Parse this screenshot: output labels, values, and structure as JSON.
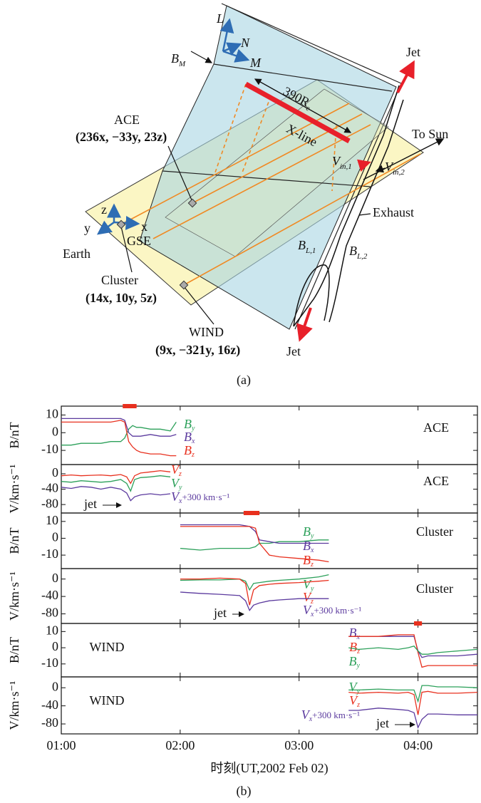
{
  "figure_a": {
    "L": "L",
    "N": "N",
    "M": "M",
    "B_M": {
      "base": "B",
      "sub": "M"
    },
    "jet_top": "Jet",
    "length": {
      "base": "390R",
      "sub": "e"
    },
    "x_line": "X-line",
    "ace": {
      "name": "ACE",
      "position": "(236x, −33y, 23z)"
    },
    "to_sun": "To Sun",
    "v_in1": {
      "base": "V",
      "sub": "in,1"
    },
    "v_in2": {
      "base": "V",
      "sub": "in,2"
    },
    "exhaust": "Exhaust",
    "gse_axes": {
      "z": "z",
      "y": "y",
      "x": "x"
    },
    "earth": "Earth",
    "gse": "GSE",
    "cluster": {
      "name": "Cluster",
      "position": "(14x, 10y, 5z)"
    },
    "b_l1": {
      "base": "B",
      "sub": "L,1"
    },
    "b_l2": {
      "base": "B",
      "sub": "L,2"
    },
    "wind": {
      "name": "WIND",
      "position": "(9x, −321y, 16z)"
    },
    "jet_bottom": "Jet",
    "caption": "(a)"
  },
  "chart_data": [
    {
      "type": "line",
      "station": "ACE",
      "y_label": "B/nT",
      "xlim": [
        "01:00",
        "04:30"
      ],
      "ylim": [
        -18,
        15
      ],
      "yticks": [
        -10,
        0,
        10
      ],
      "highlight": {
        "x": [
          "01:31",
          "01:38"
        ],
        "color": "#e8301e"
      },
      "x": [
        "01:00",
        "01:05",
        "01:10",
        "01:15",
        "01:20",
        "01:25",
        "01:30",
        "01:32",
        "01:34",
        "01:36",
        "01:38",
        "01:40",
        "01:45",
        "01:50",
        "01:55",
        "01:58"
      ],
      "series": [
        {
          "name": {
            "base": "B",
            "sub": "y"
          },
          "color": "#2ca05a",
          "values": [
            -7,
            -7,
            -6,
            -6,
            -6,
            -5,
            -5,
            -3,
            2,
            4,
            3,
            3,
            2,
            2,
            1,
            6
          ]
        },
        {
          "name": {
            "base": "B",
            "sub": "x"
          },
          "color": "#5b3a9e",
          "values": [
            8,
            8,
            8,
            8,
            8,
            8,
            8,
            7,
            0,
            -2,
            -2,
            -2,
            -1,
            -2,
            -2,
            -1
          ]
        },
        {
          "name": {
            "base": "B",
            "sub": "z"
          },
          "color": "#e8301e",
          "values": [
            6,
            6,
            6,
            6,
            6,
            6,
            7,
            6,
            -5,
            -8,
            -10,
            -11,
            -12,
            -12,
            -13,
            -13
          ]
        }
      ]
    },
    {
      "type": "line",
      "station": "ACE",
      "y_label": "V/km·s⁻¹",
      "xlim": [
        "01:00",
        "04:30"
      ],
      "ylim": [
        -102,
        24
      ],
      "yticks": [
        -80,
        -40,
        0
      ],
      "annotation": "jet",
      "x": [
        "01:00",
        "01:05",
        "01:10",
        "01:15",
        "01:20",
        "01:25",
        "01:30",
        "01:33",
        "01:35",
        "01:37",
        "01:40",
        "01:45",
        "01:50",
        "01:55"
      ],
      "series": [
        {
          "name": {
            "base": "V",
            "sub": "z"
          },
          "color": "#e8301e",
          "values": [
            -5,
            -3,
            -5,
            -4,
            -3,
            -5,
            -2,
            -8,
            -25,
            -5,
            2,
            5,
            8,
            5
          ]
        },
        {
          "name": {
            "base": "V",
            "sub": "y"
          },
          "color": "#2ca05a",
          "values": [
            -20,
            -22,
            -18,
            -20,
            -22,
            -20,
            -15,
            -25,
            -45,
            -15,
            -10,
            -8,
            -5,
            -8
          ]
        },
        {
          "name": {
            "base": "V",
            "sub": "x",
            "suffix": "+300 km·s⁻¹"
          },
          "color": "#5b3a9e",
          "values": [
            -35,
            -38,
            -33,
            -35,
            -40,
            -35,
            -40,
            -50,
            -70,
            -60,
            -55,
            -52,
            -55,
            -52
          ]
        }
      ]
    },
    {
      "type": "line",
      "station": "Cluster",
      "y_label": "B/nT",
      "xlim": [
        "01:00",
        "04:30"
      ],
      "ylim": [
        -18,
        15
      ],
      "yticks": [
        -10,
        0,
        10
      ],
      "highlight": {
        "x": [
          "02:32",
          "02:40"
        ],
        "color": "#e8301e"
      },
      "x": [
        "02:00",
        "02:10",
        "02:20",
        "02:30",
        "02:35",
        "02:38",
        "02:40",
        "02:45",
        "02:50",
        "03:00",
        "03:10",
        "03:15"
      ],
      "series": [
        {
          "name": {
            "base": "B",
            "sub": "y"
          },
          "color": "#2ca05a",
          "values": [
            -6,
            -7,
            -6,
            -6,
            -6,
            -5,
            -3,
            -3,
            -2,
            -2,
            -1,
            -1
          ]
        },
        {
          "name": {
            "base": "B",
            "sub": "x"
          },
          "color": "#5b3a9e",
          "values": [
            8,
            8,
            8,
            8,
            7,
            4,
            -1,
            -2,
            -3,
            -3,
            -3,
            -3
          ]
        },
        {
          "name": {
            "base": "B",
            "sub": "z"
          },
          "color": "#e8301e",
          "values": [
            7,
            7,
            7,
            7,
            7,
            6,
            -3,
            -10,
            -11,
            -12,
            -13,
            -14
          ]
        }
      ]
    },
    {
      "type": "line",
      "station": "Cluster",
      "y_label": "V/km·s⁻¹",
      "xlim": [
        "01:00",
        "04:30"
      ],
      "ylim": [
        -102,
        24
      ],
      "yticks": [
        -80,
        -40,
        0
      ],
      "annotation": "jet",
      "x": [
        "02:00",
        "02:10",
        "02:20",
        "02:30",
        "02:33",
        "02:35",
        "02:37",
        "02:40",
        "02:45",
        "02:50",
        "03:00",
        "03:10",
        "03:15"
      ],
      "series": [
        {
          "name": {
            "base": "V",
            "sub": "y"
          },
          "color": "#2ca05a",
          "values": [
            -3,
            -2,
            -2,
            0,
            -5,
            -25,
            -10,
            -8,
            -5,
            -3,
            0,
            5,
            10
          ]
        },
        {
          "name": {
            "base": "V",
            "sub": "z"
          },
          "color": "#e8301e",
          "values": [
            0,
            0,
            2,
            0,
            -10,
            -60,
            -25,
            -15,
            -12,
            -10,
            -8,
            -5,
            -3
          ]
        },
        {
          "name": {
            "base": "V",
            "sub": "x",
            "suffix": "+300 km·s⁻¹"
          },
          "color": "#5b3a9e",
          "values": [
            -30,
            -33,
            -35,
            -38,
            -50,
            -72,
            -60,
            -55,
            -50,
            -48,
            -45,
            -45,
            -45
          ]
        }
      ]
    },
    {
      "type": "line",
      "station": "WIND",
      "y_label": "B/nT",
      "xlim": [
        "01:00",
        "04:30"
      ],
      "ylim": [
        -18,
        15
      ],
      "yticks": [
        -10,
        0,
        10
      ],
      "highlight": {
        "x": [
          "03:58",
          "04:02"
        ],
        "color": "#e8301e"
      },
      "x": [
        "03:25",
        "03:30",
        "03:40",
        "03:50",
        "03:55",
        "03:58",
        "04:00",
        "04:02",
        "04:05",
        "04:10",
        "04:20",
        "04:30"
      ],
      "series": [
        {
          "name": {
            "base": "B",
            "sub": "x"
          },
          "color": "#5b3a9e",
          "values": [
            7,
            7,
            7,
            7,
            7,
            7,
            -2,
            -6,
            -5,
            -5,
            -5,
            -4
          ]
        },
        {
          "name": {
            "base": "B",
            "sub": "z"
          },
          "color": "#e8301e",
          "values": [
            7,
            7,
            7,
            8,
            8,
            8,
            -3,
            -12,
            -11,
            -11,
            -11,
            -11
          ]
        },
        {
          "name": {
            "base": "B",
            "sub": "y"
          },
          "color": "#2ca05a",
          "values": [
            0,
            -1,
            0,
            -1,
            0,
            1,
            -2,
            -4,
            -4,
            -3,
            -2,
            -1
          ]
        }
      ]
    },
    {
      "type": "line",
      "station": "WIND",
      "y_label": "V/km·s⁻¹",
      "xlim": [
        "01:00",
        "04:30"
      ],
      "ylim": [
        -102,
        24
      ],
      "yticks": [
        -80,
        -40,
        0
      ],
      "xticks": [
        "01:00",
        "02:00",
        "03:00",
        "04:00"
      ],
      "x_label": "时刻(UT,2002 Feb 02)",
      "annotation": "jet",
      "x": [
        "03:25",
        "03:30",
        "03:40",
        "03:50",
        "03:55",
        "03:58",
        "04:00",
        "04:02",
        "04:05",
        "04:10",
        "04:20",
        "04:30"
      ],
      "series": [
        {
          "name": {
            "base": "V",
            "sub": "y"
          },
          "color": "#2ca05a",
          "values": [
            -5,
            -5,
            -3,
            -5,
            -5,
            -5,
            -30,
            5,
            5,
            2,
            2,
            0
          ]
        },
        {
          "name": {
            "base": "V",
            "sub": "z"
          },
          "color": "#e8301e",
          "values": [
            -10,
            -12,
            -10,
            -12,
            -10,
            -15,
            -60,
            -10,
            -8,
            -12,
            -12,
            -10
          ]
        },
        {
          "name": {
            "base": "V",
            "sub": "x",
            "suffix": "+300 km·s⁻¹"
          },
          "color": "#5b3a9e",
          "values": [
            -50,
            -50,
            -45,
            -48,
            -50,
            -55,
            -88,
            -70,
            -58,
            -58,
            -60,
            -60
          ]
        }
      ]
    }
  ],
  "caption_b": "(b)"
}
